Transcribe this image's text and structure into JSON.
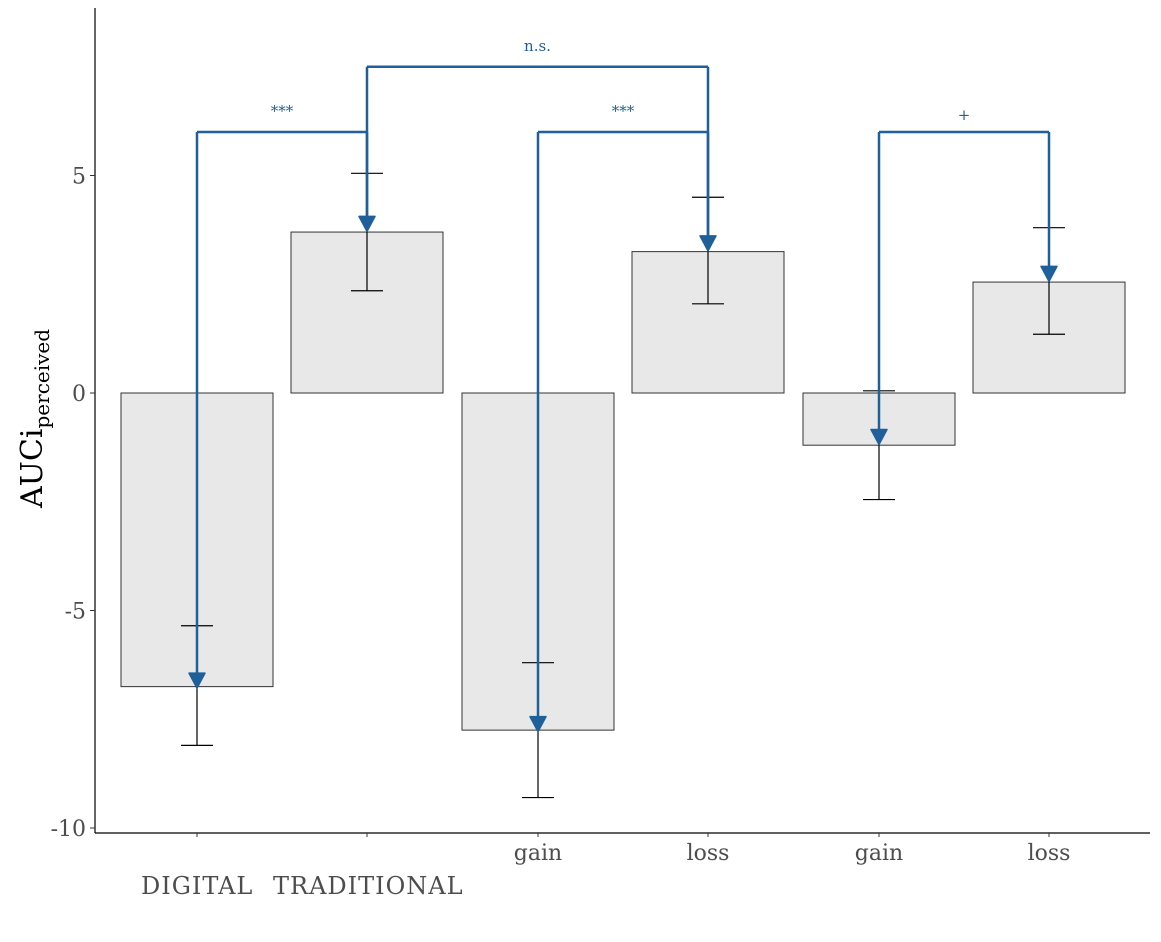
{
  "chart_data": {
    "type": "bar",
    "ylabel": "AUCi",
    "ylabel_subscript": "perceived",
    "ylim": [
      -10.1,
      8.9
    ],
    "yticks": [
      5,
      0,
      -5,
      -10
    ],
    "ytick_labels": [
      "5",
      "0",
      "-5",
      "-10"
    ],
    "categories": [
      "",
      "",
      "gain",
      "loss",
      "gain",
      "loss"
    ],
    "group_labels": [
      "DIGITAL",
      "TRADITIONAL"
    ],
    "values": [
      -6.75,
      3.7,
      -7.75,
      3.25,
      -1.2,
      2.55
    ],
    "error_bars": [
      {
        "low": -8.1,
        "high": -5.35
      },
      {
        "low": 2.35,
        "high": 5.05
      },
      {
        "low": -9.3,
        "high": -6.2
      },
      {
        "low": 2.05,
        "high": 4.5
      },
      {
        "low": -2.45,
        "high": 0.05
      },
      {
        "low": 1.35,
        "high": 3.8
      }
    ],
    "markers": [
      -6.6,
      3.9,
      -7.6,
      3.45,
      -1.0,
      2.75
    ],
    "comparisons": [
      {
        "from": 0,
        "to": 1,
        "y": 6.0,
        "label": "***"
      },
      {
        "from": 2,
        "to": 3,
        "y": 6.0,
        "label": "***"
      },
      {
        "from": 4,
        "to": 5,
        "y": 6.0,
        "label": "+"
      },
      {
        "from": 1,
        "to": 3,
        "y": 7.5,
        "label": "n.s."
      }
    ],
    "colors": {
      "bar_fill": "#e8e8e8",
      "bar_stroke": "#333333",
      "accent": "#1f5f9a",
      "axis": "#000000"
    }
  }
}
